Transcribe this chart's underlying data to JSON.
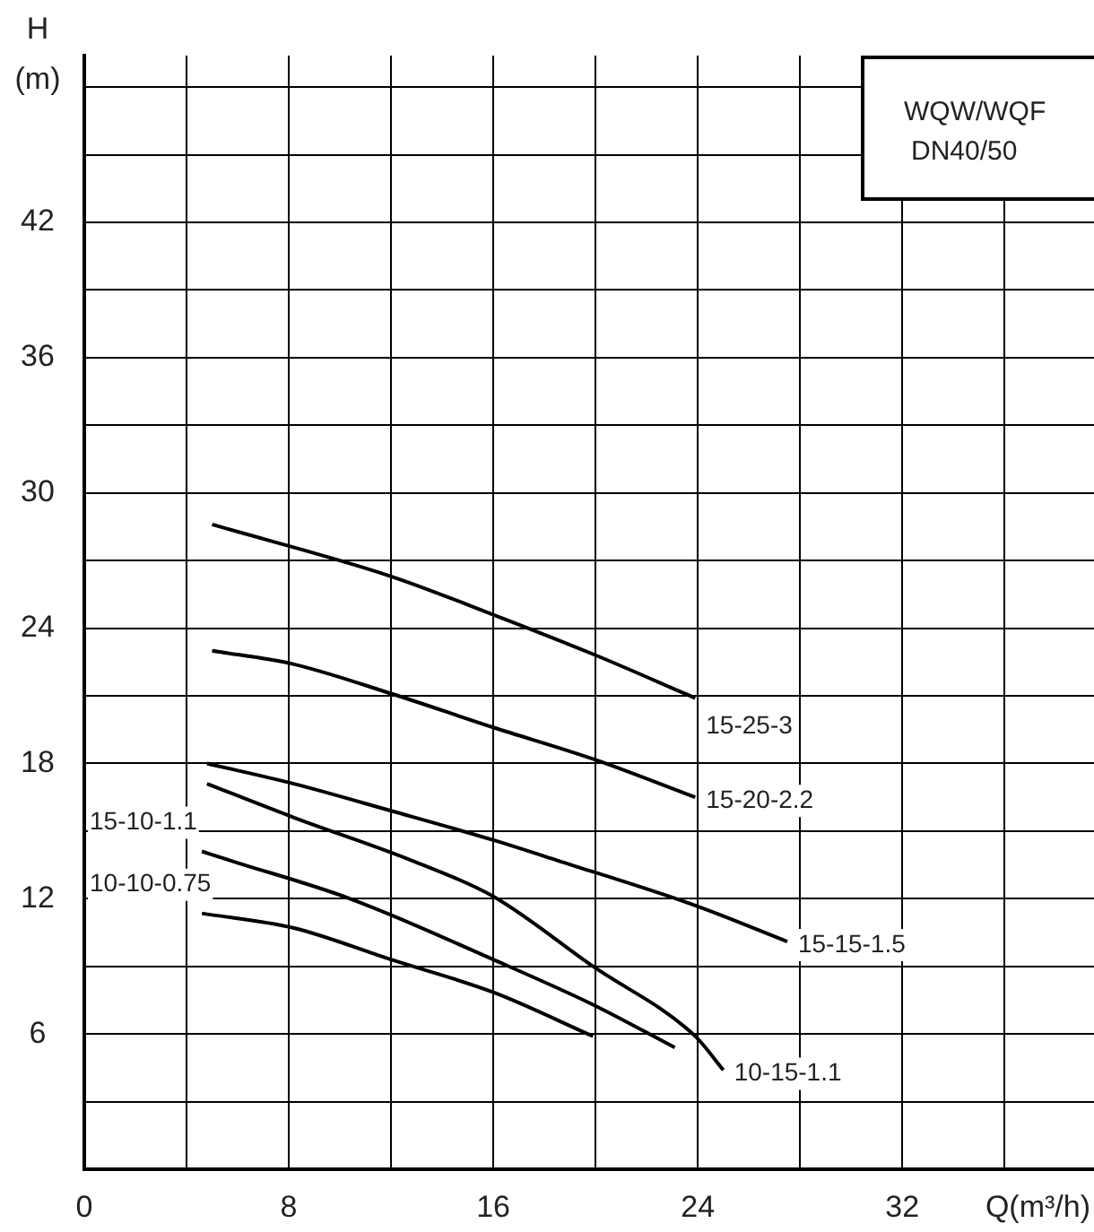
{
  "chart_data": {
    "type": "line",
    "xlabel": "Q(m³/h)",
    "ylabel": "H (m)",
    "xlim": [
      0,
      39.5
    ],
    "ylim": [
      0,
      49.4
    ],
    "xticks": [
      0,
      {
        "value": 4,
        "label": null
      },
      8,
      {
        "value": 12,
        "label": null
      },
      16,
      {
        "value": 20,
        "label": null
      },
      24,
      {
        "value": 28,
        "label": null
      },
      32,
      {
        "value": 36,
        "label": null
      }
    ],
    "yticks": [
      {
        "value": 3,
        "label": null
      },
      6,
      {
        "value": 9,
        "label": null
      },
      12,
      {
        "value": 15,
        "label": null
      },
      18,
      {
        "value": 21,
        "label": null
      },
      24,
      {
        "value": 27,
        "label": null
      },
      30,
      {
        "value": 33,
        "label": null
      },
      36,
      {
        "value": 39,
        "label": null
      },
      42,
      {
        "value": 45,
        "label": null
      },
      {
        "value": 48,
        "label": null
      }
    ],
    "grid": true,
    "legend": false,
    "marker": "none",
    "line_style": "solid",
    "annotations": [
      "WQW/WQF DN40/50"
    ],
    "series": [
      {
        "name": "15-25-3",
        "color": "#000000",
        "x": [
          5,
          12,
          16,
          19.9,
          23.9
        ],
        "values": [
          28.6,
          26.3,
          24.6,
          22.85,
          20.9
        ]
      },
      {
        "name": "15-20-2.2",
        "color": "#000000",
        "x": [
          5,
          8.2,
          12,
          16,
          19.9,
          23.9
        ],
        "values": [
          23.0,
          22.4,
          21.1,
          19.6,
          18.2,
          16.5
        ]
      },
      {
        "name": "15-15-1.5",
        "color": "#000000",
        "x": [
          4.8,
          8.2,
          12,
          16,
          18.5,
          23.9,
          27.5
        ],
        "values": [
          18.0,
          17.1,
          15.9,
          14.6,
          13.7,
          11.7,
          10.1
        ]
      },
      {
        "name": "10-15-1.1",
        "color": "#000000",
        "x": [
          4.8,
          8.2,
          12.8,
          16,
          19.9,
          23.9,
          25
        ],
        "values": [
          17.1,
          15.6,
          13.7,
          12.1,
          9.0,
          5.9,
          4.4
        ]
      },
      {
        "name": "15-10-1.1",
        "color": "#000000",
        "x": [
          4.6,
          5.7,
          10.4,
          16,
          19.9,
          23.1
        ],
        "values": [
          14.1,
          13.7,
          12.0,
          9.3,
          7.3,
          5.4
        ]
      },
      {
        "name": "10-10-0.75",
        "color": "#000000",
        "x": [
          4.6,
          8.2,
          12,
          16,
          19.9
        ],
        "values": [
          11.35,
          10.7,
          9.3,
          7.85,
          5.9
        ]
      }
    ]
  }
}
